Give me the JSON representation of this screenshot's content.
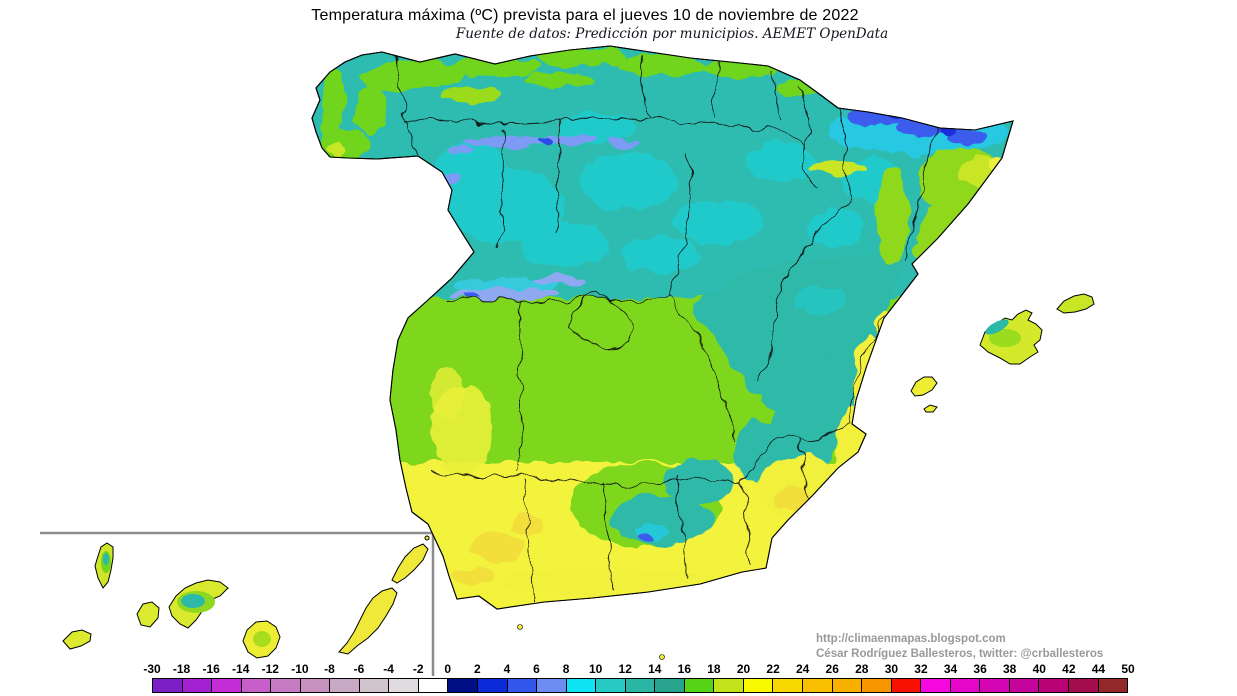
{
  "title": "Temperatura máxima (ºC) prevista para el jueves 10 de noviembre de 2022",
  "subtitle": "Fuente de datos: Predicción por municipios. AEMET OpenData",
  "credits": {
    "url": "http://climaenmapas.blogspot.com",
    "author": "César Rodríguez Ballesteros, twitter: @crballesteros"
  },
  "legend": {
    "boundary_labels": [
      "-30",
      "-18",
      "-16",
      "-14",
      "-12",
      "-10",
      "-8",
      "-6",
      "-4",
      "-2",
      "0",
      "2",
      "4",
      "6",
      "8",
      "10",
      "12",
      "14",
      "16",
      "18",
      "20",
      "22",
      "24",
      "26",
      "28",
      "30",
      "32",
      "34",
      "36",
      "38",
      "40",
      "42",
      "44",
      "50"
    ],
    "cell_colors": [
      "#7C1FC7",
      "#A321D3",
      "#C42CD6",
      "#C75FCA",
      "#C77BC3",
      "#C792C0",
      "#C7A9C3",
      "#D2C4CC",
      "#E0DBDF",
      "#FEFEFE",
      "#000F86",
      "#0B2BD9",
      "#3356EB",
      "#6D8DF3",
      "#0FE4F4",
      "#27C9C4",
      "#2BB5A5",
      "#28A38D",
      "#55D417",
      "#C2E31C",
      "#F8F800",
      "#F8D800",
      "#F8C000",
      "#F8B000",
      "#F89600",
      "#F81000",
      "#F508E0",
      "#E606C9",
      "#D405B2",
      "#C4049A",
      "#BA0277",
      "#A30D4D",
      "#93282B"
    ]
  },
  "map_palette": {
    "teal_base": "#2EBCB0",
    "cyan_patch": "#1FD0D6",
    "green_band": "#7ED71E",
    "yellow_band": "#F3F23D",
    "pyrenees_blue": "#3A5CEC",
    "navy_cold": "#1C2FD8",
    "inset_frame_gray": "#8C8C8C"
  }
}
